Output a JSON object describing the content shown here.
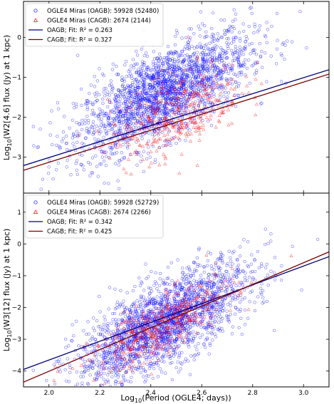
{
  "chart_data": [
    {
      "type": "scatter",
      "panel": "top",
      "xlabel": "",
      "ylabel_main": "Log",
      "ylabel_sub": "10",
      "ylabel_rest": "(W2[4.6] flux (Jy) at 1 kpc)",
      "xlim": [
        1.9,
        3.1
      ],
      "ylim": [
        -3.9,
        0.9
      ],
      "yticks": [
        -3,
        -2,
        -1,
        0
      ],
      "ytick_labels": [
        "−3",
        "−2",
        "−1",
        "0"
      ],
      "legend": {
        "placement": "top-left",
        "entries": [
          {
            "label": "OGLE4 Miras (OAGB): 59928 (52480)",
            "marker": "circle",
            "color": "#0000ff"
          },
          {
            "label": "OGLE4 Miras (CAGB): 2674 (2144)",
            "marker": "triangle",
            "color": "#ff0000"
          },
          {
            "label": "OAGB; Fit: R² = 0.263",
            "marker": "line",
            "color": "#00007a"
          },
          {
            "label": "CAGB; Fit: R² = 0.327",
            "marker": "line",
            "color": "#7a0000"
          }
        ]
      },
      "series": [
        {
          "name": "OGLE4 Miras (OAGB): 59928 (52480)",
          "color": "#0000ff",
          "marker": "circle",
          "cloud": {
            "x_center": 2.45,
            "x_sd": 0.17,
            "slope": 3.0,
            "intercept": -8.75,
            "scatter": 0.55
          }
        },
        {
          "name": "OGLE4 Miras (CAGB): 2674 (2144)",
          "color": "#ff0000",
          "marker": "triangle",
          "cloud": {
            "x_center": 2.5,
            "x_sd": 0.13,
            "slope": 2.6,
            "intercept": -8.4,
            "scatter": 0.5
          }
        }
      ],
      "fits": [
        {
          "name": "OAGB",
          "color": "#00007a",
          "x": [
            1.9,
            3.1
          ],
          "y": [
            -3.21,
            -0.81
          ],
          "r2": 0.263
        },
        {
          "name": "CAGB",
          "color": "#7a0000",
          "x": [
            1.9,
            3.1
          ],
          "y": [
            -3.33,
            -0.92
          ],
          "r2": 0.327
        }
      ]
    },
    {
      "type": "scatter",
      "panel": "bottom",
      "xlabel_main": "Log",
      "xlabel_sub": "10",
      "xlabel_rest": "(Period (OGLE4; days))",
      "ylabel_main": "Log",
      "ylabel_sub": "10",
      "ylabel_rest": "(W3[12] flux (Jy) at 1 kpc)",
      "xlim": [
        1.9,
        3.1
      ],
      "ylim": [
        -4.5,
        1.6
      ],
      "xticks": [
        2.0,
        2.2,
        2.4,
        2.6,
        2.8,
        3.0
      ],
      "xtick_labels": [
        "2.0",
        "2.2",
        "2.4",
        "2.6",
        "2.8",
        "3.0"
      ],
      "yticks": [
        -4,
        -3,
        -2,
        -1,
        0,
        1
      ],
      "ytick_labels": [
        "−4",
        "−3",
        "−2",
        "−1",
        "0",
        "1"
      ],
      "legend": {
        "placement": "top-left",
        "entries": [
          {
            "label": "OGLE4 Miras (OAGB): 59928 (52729)",
            "marker": "circle",
            "color": "#0000ff"
          },
          {
            "label": "OGLE4 Miras (CAGB): 2674 (2266)",
            "marker": "triangle",
            "color": "#ff0000"
          },
          {
            "label": "OAGB; Fit: R² = 0.342",
            "marker": "line",
            "color": "#00007a"
          },
          {
            "label": "CAGB; Fit: R² = 0.425",
            "marker": "line",
            "color": "#7a0000"
          }
        ]
      },
      "series": [
        {
          "name": "OGLE4 Miras (OAGB): 59928 (52729)",
          "color": "#0000ff",
          "marker": "circle",
          "cloud": {
            "x_center": 2.45,
            "x_sd": 0.17,
            "slope": 4.0,
            "intercept": -12.3,
            "scatter": 0.65
          }
        },
        {
          "name": "OGLE4 Miras (CAGB): 2674 (2266)",
          "color": "#ff0000",
          "marker": "triangle",
          "cloud": {
            "x_center": 2.45,
            "x_sd": 0.14,
            "slope": 4.3,
            "intercept": -13.1,
            "scatter": 0.45
          }
        }
      ],
      "fits": [
        {
          "name": "OAGB",
          "color": "#00007a",
          "x": [
            1.9,
            3.1
          ],
          "y": [
            -3.95,
            -0.4
          ],
          "r2": 0.342
        },
        {
          "name": "CAGB",
          "color": "#7a0000",
          "x": [
            1.9,
            3.1
          ],
          "y": [
            -4.35,
            -0.25
          ],
          "r2": 0.425
        }
      ]
    }
  ]
}
